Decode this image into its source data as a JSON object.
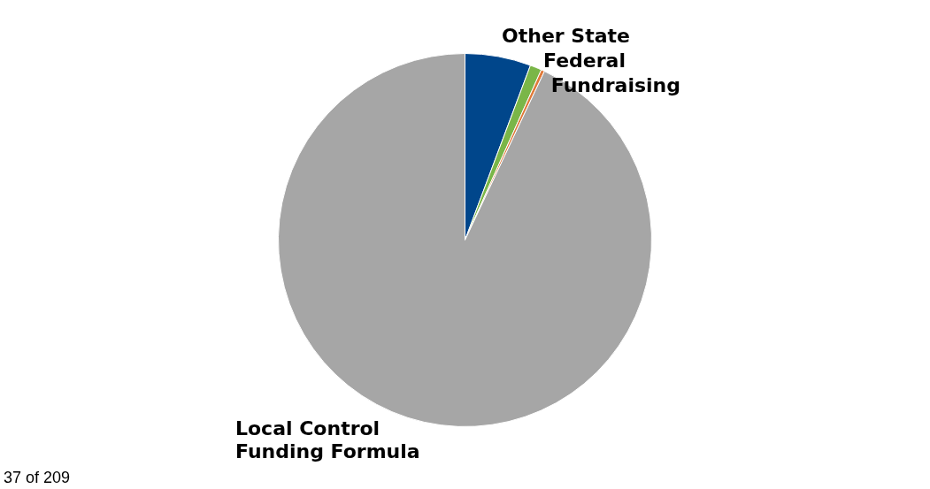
{
  "chart_data": {
    "type": "pie",
    "categories": [
      "Other State",
      "Federal",
      "Fundraising",
      "Local Control Funding Formula"
    ],
    "values": [
      5.7,
      1,
      0.3,
      93
    ],
    "colors": [
      "#00468b",
      "#7ab648",
      "#e07a3a",
      "#a6a6a6"
    ],
    "legend": false,
    "annotations": [
      "37 of 209"
    ]
  }
}
